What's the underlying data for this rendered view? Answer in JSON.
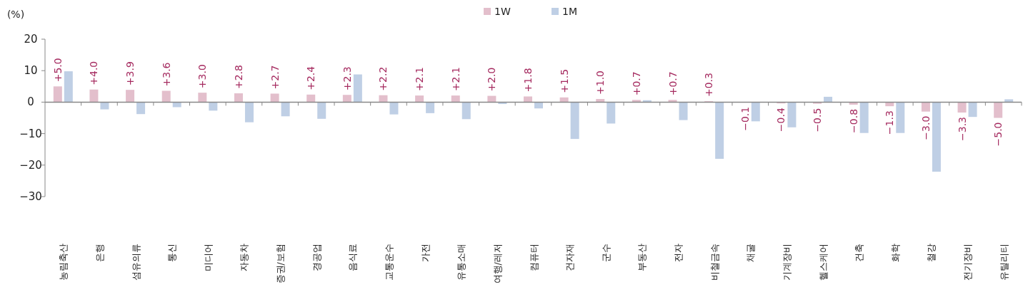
{
  "chart_data": {
    "type": "bar",
    "ylabel": "(%)",
    "legend": "top",
    "categories": [
      "농림축산",
      "은행",
      "섬유의류",
      "통신",
      "미디어",
      "자동차",
      "증권/보험",
      "경공업",
      "음식료",
      "교통운수",
      "가전",
      "유통소매",
      "여행/레저",
      "컴퓨터",
      "건자재",
      "군수",
      "부동산",
      "전자",
      "비철금속",
      "채굴",
      "기계장비",
      "헬스케어",
      "건축",
      "화학",
      "철강",
      "전기장비",
      "유틸리티"
    ],
    "series": [
      {
        "name": "1W",
        "color": "#e3bfcc",
        "values": [
          5.0,
          4.0,
          3.9,
          3.6,
          3.0,
          2.8,
          2.7,
          2.4,
          2.3,
          2.2,
          2.1,
          2.1,
          2.0,
          1.8,
          1.5,
          1.0,
          0.7,
          0.7,
          0.3,
          -0.1,
          -0.4,
          -0.5,
          -0.8,
          -1.3,
          -3.0,
          -3.3,
          -5.0
        ],
        "value_labels": [
          "+5.0",
          "+4.0",
          "+3.9",
          "+3.6",
          "+3.0",
          "+2.8",
          "+2.7",
          "+2.4",
          "+2.3",
          "+2.2",
          "+2.1",
          "+2.1",
          "+2.0",
          "+1.8",
          "+1.5",
          "+1.0",
          "+0.7",
          "+0.7",
          "+0.3",
          "−0.1",
          "−0.4",
          "−0.5",
          "−0.8",
          "−1.3",
          "−3.0",
          "−3.3",
          "−5.0"
        ]
      },
      {
        "name": "1M",
        "color": "#bfcfe5",
        "values": [
          9.8,
          -2.3,
          -3.8,
          -1.6,
          -2.7,
          -6.4,
          -4.5,
          -5.3,
          8.8,
          -3.9,
          -3.5,
          -5.4,
          -0.6,
          -2.0,
          -11.7,
          -6.8,
          0.6,
          -5.7,
          -18.0,
          -6.1,
          -8.0,
          1.7,
          -9.8,
          -9.8,
          -22.1,
          -4.7,
          0.9
        ]
      }
    ],
    "ylim": [
      -30,
      20
    ],
    "yticks": [
      20,
      10,
      0,
      {
        "value": -10,
        "label": "−10"
      },
      {
        "value": -20,
        "label": "−20"
      },
      {
        "value": -30,
        "label": "−30"
      }
    ]
  }
}
